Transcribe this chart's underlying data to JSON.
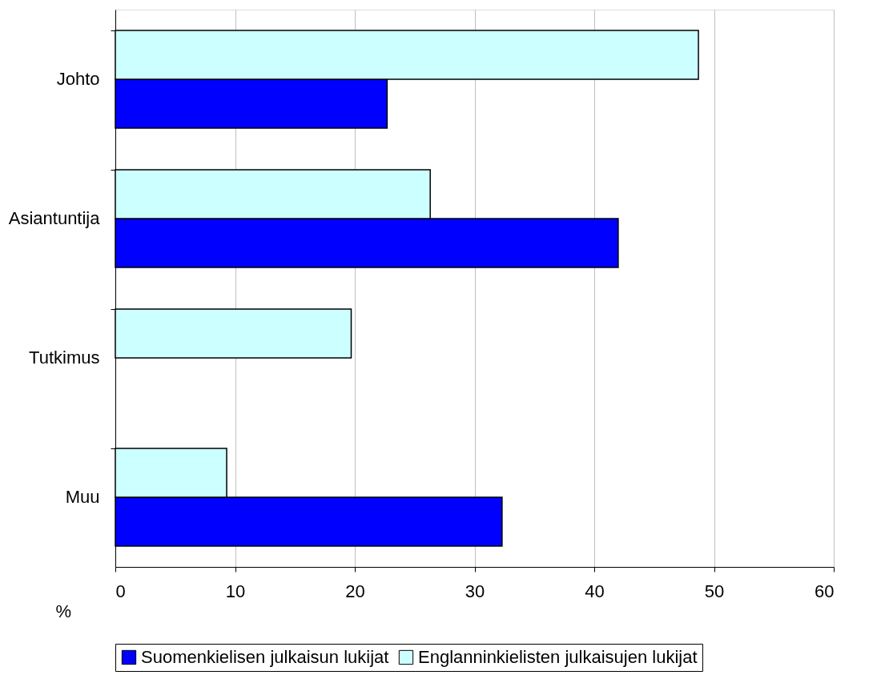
{
  "chart_data": {
    "type": "bar",
    "orientation": "horizontal",
    "categories": [
      "Johto",
      "Asiantuntija",
      "Tutkimus",
      "Muu"
    ],
    "series": [
      {
        "name": "Suomenkielisen julkaisun lukijat",
        "color": "#0000ff",
        "values": [
          22.7,
          42.0,
          null,
          32.3
        ]
      },
      {
        "name": "Englanninkielisten julkaisujen lukijat",
        "color": "#ccffff",
        "values": [
          48.7,
          26.3,
          19.7,
          9.3
        ]
      }
    ],
    "xlabel": "%",
    "xlim": [
      0,
      60
    ],
    "xticks": [
      0,
      10,
      20,
      30,
      40,
      50,
      60
    ],
    "grid": "x",
    "legend": "bottom"
  }
}
